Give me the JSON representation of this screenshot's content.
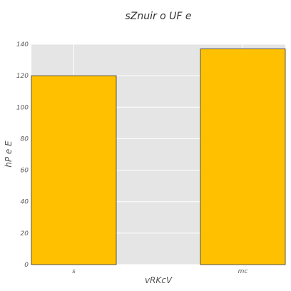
{
  "chart_data": {
    "type": "bar",
    "title": "sZnuir o UF e",
    "xlabel": "vRKcV",
    "ylabel": "hP e E",
    "categories": [
      "s",
      "mc"
    ],
    "values": [
      120,
      137
    ],
    "ylim": [
      0,
      140
    ],
    "yticks": [
      0,
      20,
      40,
      60,
      80,
      100,
      120,
      140
    ],
    "grid": true,
    "bar_color": "#FFC000",
    "bar_edge_color": "#333333",
    "background_color": "#E5E5E5",
    "grid_color": "#FFFFFF"
  }
}
